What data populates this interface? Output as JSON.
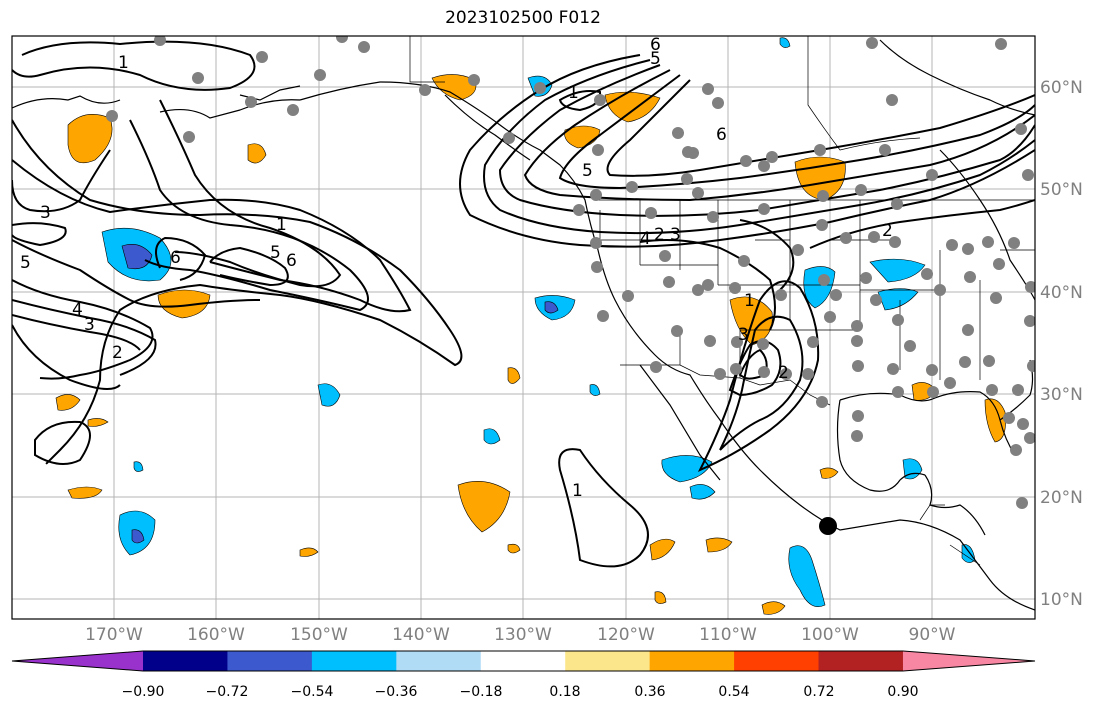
{
  "title": "2023102500 F012",
  "longitude_labels": [
    "170°W",
    "160°W",
    "150°W",
    "140°W",
    "130°W",
    "120°W",
    "110°W",
    "100°W",
    "90°W"
  ],
  "latitude_labels": [
    "60°N",
    "50°N",
    "40°N",
    "30°N",
    "20°N",
    "10°N"
  ],
  "colorbar": {
    "tick_labels": [
      "−0.90",
      "−0.72",
      "−0.54",
      "−0.36",
      "−0.18",
      "0.18",
      "0.36",
      "0.54",
      "0.72",
      "0.90"
    ],
    "colors": [
      "#9932cc",
      "#00008b",
      "#3c5acd",
      "#00bfff",
      "#b0dcf5",
      "#ffffff",
      "#fce68c",
      "#ffa500",
      "#ff4000",
      "#b22222",
      "#f787a3"
    ]
  },
  "contour_labels": [
    "1",
    "2",
    "3",
    "4",
    "5",
    "6"
  ],
  "colors": {
    "positive_fill": "#ffa500",
    "negative_fill": "#00bfff",
    "strong_negative_fill": "#3c5acd",
    "gridline": "#b4b4b4",
    "station_dot": "#808080",
    "marker_dot": "#000000"
  }
}
